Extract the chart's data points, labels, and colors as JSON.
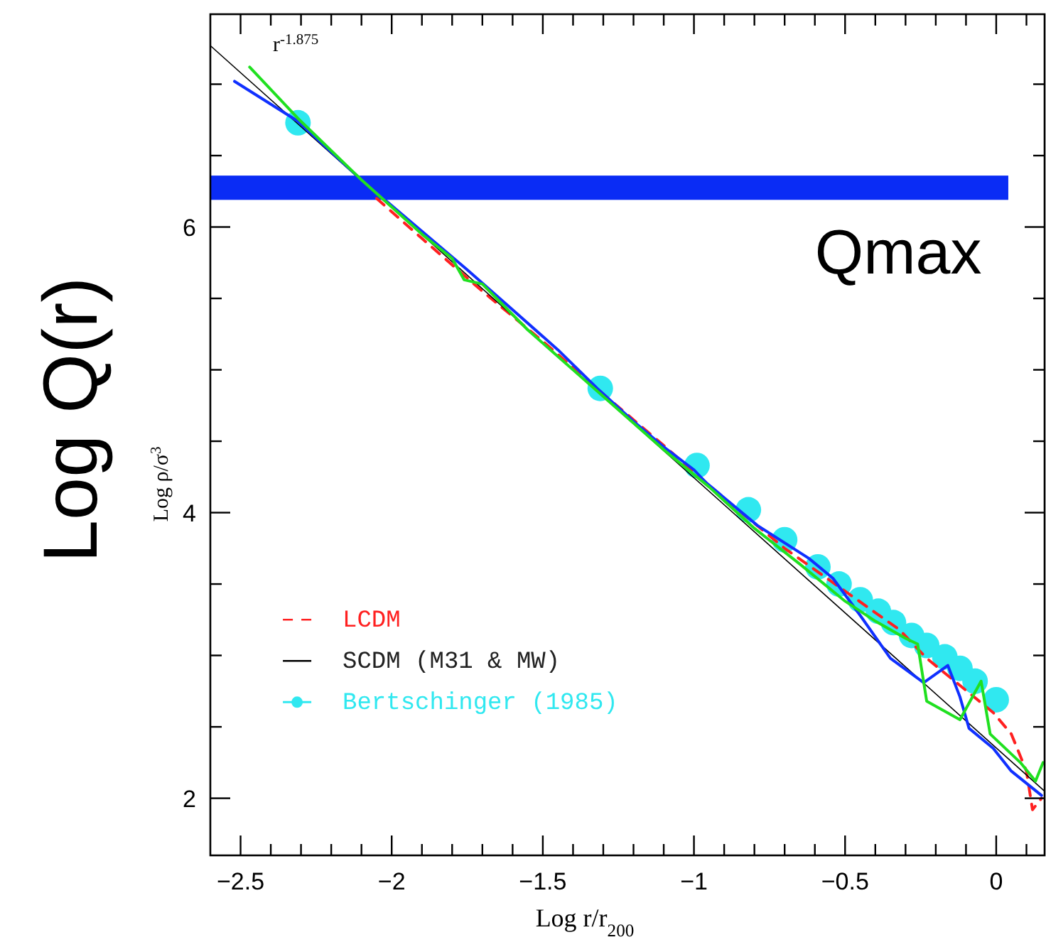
{
  "chart_data": {
    "type": "line",
    "xlabel": "Log r/r$_{200}$",
    "ylabel": "Log ρ/σ$^{3}$",
    "xlim": [
      -2.6,
      0.16
    ],
    "ylim": [
      1.6,
      7.49
    ],
    "xticks": [
      {
        "value": -2.5,
        "label": "−2.5"
      },
      {
        "value": -2.4,
        "label": null
      },
      {
        "value": -2.3,
        "label": null
      },
      {
        "value": -2.2,
        "label": null
      },
      {
        "value": -2.1,
        "label": null
      },
      {
        "value": -2,
        "label": "−2"
      },
      {
        "value": -1.9,
        "label": null
      },
      {
        "value": -1.8,
        "label": null
      },
      {
        "value": -1.7,
        "label": null
      },
      {
        "value": -1.6,
        "label": null
      },
      {
        "value": -1.5,
        "label": "−1.5"
      },
      {
        "value": -1.4,
        "label": null
      },
      {
        "value": -1.3,
        "label": null
      },
      {
        "value": -1.2,
        "label": null
      },
      {
        "value": -1.1,
        "label": null
      },
      {
        "value": -1,
        "label": "−1"
      },
      {
        "value": -0.9,
        "label": null
      },
      {
        "value": -0.8,
        "label": null
      },
      {
        "value": -0.7,
        "label": null
      },
      {
        "value": -0.6,
        "label": null
      },
      {
        "value": -0.5,
        "label": "−0.5"
      },
      {
        "value": -0.4,
        "label": null
      },
      {
        "value": -0.3,
        "label": null
      },
      {
        "value": -0.2,
        "label": null
      },
      {
        "value": -0.1,
        "label": null
      },
      {
        "value": 0,
        "label": "0"
      },
      {
        "value": 0.1,
        "label": null
      }
    ],
    "yticks": [
      {
        "value": 2,
        "label": "2"
      },
      {
        "value": 2.5,
        "label": null
      },
      {
        "value": 3,
        "label": null
      },
      {
        "value": 3.5,
        "label": null
      },
      {
        "value": 4,
        "label": "4"
      },
      {
        "value": 4.5,
        "label": null
      },
      {
        "value": 5,
        "label": null
      },
      {
        "value": 5.5,
        "label": null
      },
      {
        "value": 6,
        "label": "6"
      },
      {
        "value": 6.5,
        "label": null
      },
      {
        "value": 7,
        "label": null
      }
    ],
    "legend": "bottom left",
    "grid": false,
    "series": [
      {
        "name": "LCDM",
        "color": "#ff2020",
        "line_style": "dashed",
        "x": [
          -2.05,
          -1.9,
          -1.7,
          -1.5,
          -1.3,
          -1.1,
          -0.9,
          -0.7,
          -0.5,
          -0.4,
          -0.32,
          -0.23,
          -0.12,
          -0.01,
          0.05,
          0.1,
          0.12,
          0.15
        ],
        "values": [
          6.2,
          5.92,
          5.55,
          5.2,
          4.83,
          4.47,
          4.1,
          3.75,
          3.45,
          3.3,
          3.18,
          2.98,
          2.79,
          2.6,
          2.45,
          2.19,
          1.92,
          2.0
        ]
      },
      {
        "name": "SCDM (M31 & MW)",
        "color": "#000000",
        "x": [
          -2.6,
          0.16
        ],
        "values": [
          7.27,
          2.05
        ]
      },
      {
        "color": "#1030ff",
        "x": [
          -2.52,
          -2.31,
          -2.1,
          -1.9,
          -1.75,
          -1.6,
          -1.45,
          -1.32,
          -1.2,
          -1.1,
          -1.0,
          -0.96,
          -0.79,
          -0.62,
          -0.54,
          -0.45,
          -0.35,
          -0.24,
          -0.16,
          -0.12,
          -0.09,
          -0.01,
          0.05,
          0.15
        ],
        "values": [
          7.02,
          6.74,
          6.33,
          5.97,
          5.7,
          5.42,
          5.14,
          4.87,
          4.64,
          4.46,
          4.3,
          4.21,
          3.91,
          3.68,
          3.54,
          3.28,
          2.98,
          2.81,
          2.93,
          2.71,
          2.49,
          2.35,
          2.19,
          2.02
        ]
      },
      {
        "color": "#20e020",
        "x": [
          -2.47,
          -2.31,
          -2.1,
          -1.9,
          -1.8,
          -1.76,
          -1.7,
          -1.55,
          -1.4,
          -1.25,
          -1.1,
          -0.95,
          -0.8,
          -0.65,
          -0.5,
          -0.4,
          -0.3,
          -0.26,
          -0.23,
          -0.12,
          -0.05,
          -0.02,
          0.08,
          0.13,
          0.155
        ],
        "values": [
          7.12,
          6.76,
          6.33,
          5.95,
          5.78,
          5.63,
          5.6,
          5.28,
          5.0,
          4.72,
          4.44,
          4.18,
          3.89,
          3.64,
          3.38,
          3.24,
          3.12,
          3.08,
          2.68,
          2.55,
          2.82,
          2.45,
          2.25,
          2.12,
          2.25
        ]
      },
      {
        "name": "Bertschinger (1985)",
        "type": "scatter",
        "marker": "circle",
        "color": "#30e8f0",
        "x": [
          -2.31,
          -1.31,
          -0.99,
          -0.82,
          -0.7,
          -0.59,
          -0.52,
          -0.45,
          -0.39,
          -0.34,
          -0.28,
          -0.23,
          -0.17,
          -0.12,
          -0.07,
          0.0
        ],
        "values": [
          6.73,
          4.87,
          4.33,
          4.02,
          3.81,
          3.62,
          3.5,
          3.39,
          3.31,
          3.23,
          3.14,
          3.07,
          2.99,
          2.91,
          2.82,
          2.69
        ]
      }
    ],
    "bands": [
      {
        "axis": "y",
        "from": 6.19,
        "to": 6.36,
        "label": "Qmax",
        "color": "#0a2cf5"
      }
    ],
    "annotations": [
      "r$^{-1.875}$",
      "Log Q(r)"
    ]
  }
}
